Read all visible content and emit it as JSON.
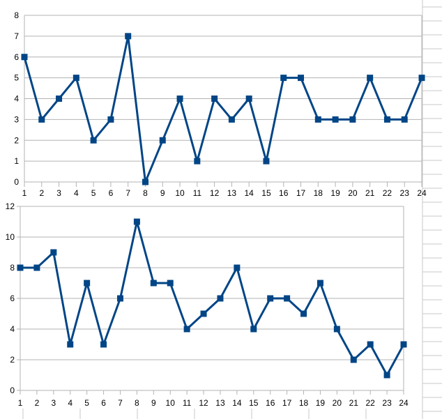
{
  "chart_data": [
    {
      "type": "line",
      "categories": [
        "1",
        "2",
        "3",
        "4",
        "5",
        "6",
        "7",
        "8",
        "9",
        "10",
        "11",
        "12",
        "13",
        "14",
        "15",
        "16",
        "17",
        "18",
        "19",
        "20",
        "21",
        "22",
        "23",
        "24"
      ],
      "series": [
        {
          "values": [
            6,
            3,
            4,
            5,
            2,
            3,
            7,
            0,
            2,
            4,
            1,
            4,
            3,
            4,
            1,
            5,
            5,
            3,
            3,
            3,
            5,
            3,
            3,
            5
          ]
        }
      ],
      "ylim": [
        0,
        8
      ],
      "yticks": [
        0,
        1,
        2,
        3,
        4,
        5,
        6,
        7,
        8
      ],
      "grid": true,
      "legend": "none",
      "color": "#004586"
    },
    {
      "type": "line",
      "categories": [
        "1",
        "2",
        "3",
        "4",
        "5",
        "6",
        "7",
        "8",
        "9",
        "10",
        "11",
        "12",
        "13",
        "14",
        "15",
        "16",
        "17",
        "18",
        "19",
        "20",
        "21",
        "22",
        "23",
        "24"
      ],
      "series": [
        {
          "values": [
            8,
            8,
            9,
            3,
            7,
            3,
            6,
            11,
            7,
            7,
            4,
            5,
            6,
            8,
            4,
            6,
            6,
            5,
            7,
            4,
            2,
            3,
            1,
            3
          ]
        }
      ],
      "ylim": [
        0,
        12
      ],
      "yticks": [
        0,
        2,
        4,
        6,
        8,
        10,
        12
      ],
      "grid": true,
      "legend": "none",
      "color": "#004586"
    }
  ]
}
